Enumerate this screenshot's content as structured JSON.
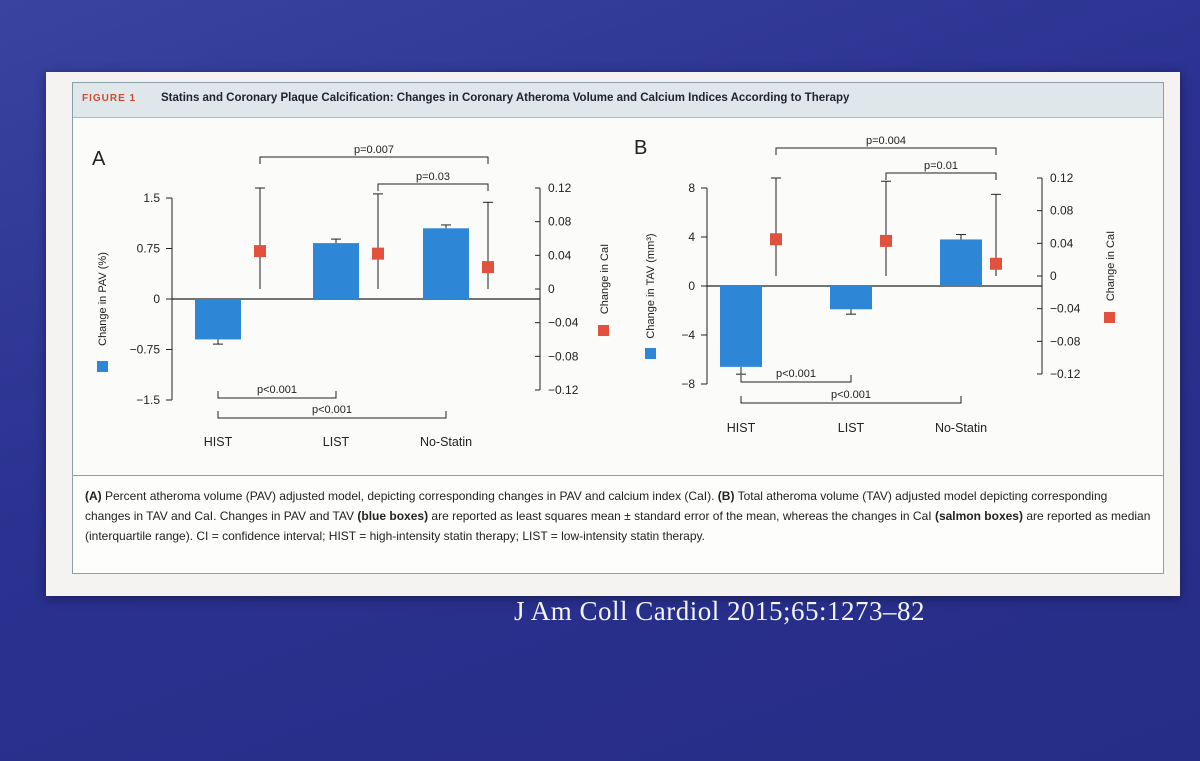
{
  "figure": {
    "label": "FIGURE 1",
    "title": "Statins and Coronary Plaque Calcification: Changes in Coronary Atheroma Volume and Calcium Indices According to Therapy",
    "caption": {
      "part1_label": "(A)",
      "part1": " Percent atheroma volume (PAV) adjusted model, depicting corresponding changes in PAV and calcium index (CaI). ",
      "part2_label": "(B)",
      "part2": " Total atheroma volume (TAV) adjusted model depicting corresponding changes in TAV and CaI. Changes in PAV and TAV ",
      "blue_label": "(blue boxes)",
      "part3": " are reported as least squares mean ± standard error of the mean, whereas the changes in CaI ",
      "salmon_label": "(salmon boxes)",
      "part4": " are reported as median (interquartile range). CI = confidence interval; HIST = high-intensity statin therapy; LIST = low-intensity statin therapy."
    }
  },
  "citation": "J Am Coll Cardiol 2015;65:1273–82",
  "colors": {
    "blue": "#2e86d6",
    "salmon": "#e2513e",
    "axis": "#222222"
  },
  "chart_data": [
    {
      "type": "bar",
      "panel_label": "A",
      "categories": [
        "HIST",
        "LIST",
        "No-Statin"
      ],
      "ylabel": "Change in PAV (%)",
      "y2label": "Change in CaI",
      "ylim": [
        -1.5,
        1.5
      ],
      "yticks": [
        "1.5",
        "0.75",
        "0",
        "−0.75",
        "−1.5"
      ],
      "ytick_values": [
        1.5,
        0.75,
        0,
        -0.75,
        -1.5
      ],
      "y2lim": [
        -0.12,
        0.12
      ],
      "y2ticks": [
        "0.12",
        "0.08",
        "0.04",
        "0",
        "−0.04",
        "−0.08",
        "−0.12"
      ],
      "y2tick_values": [
        0.12,
        0.08,
        0.04,
        0,
        -0.04,
        -0.08,
        -0.12
      ],
      "series": [
        {
          "name": "Change in PAV (%)",
          "values": [
            -0.6,
            0.83,
            1.05
          ],
          "error": [
            0.07,
            0.06,
            0.05
          ]
        },
        {
          "name": "Change in CaI",
          "axis": "right",
          "values": [
            0.045,
            0.042,
            0.026
          ],
          "low": [
            0.0,
            0.0,
            0.0
          ],
          "high": [
            0.12,
            0.113,
            0.103
          ]
        }
      ],
      "comparisons_top": [
        {
          "text": "p=0.007",
          "from": 0,
          "to": 2
        },
        {
          "text": "p=0.03",
          "from": 1,
          "to": 2
        }
      ],
      "comparisons_bottom": [
        {
          "text": "p<0.001",
          "from": 0,
          "to": 1
        },
        {
          "text": "p<0.001",
          "from": 0,
          "to": 2
        }
      ]
    },
    {
      "type": "bar",
      "panel_label": "B",
      "categories": [
        "HIST",
        "LIST",
        "No-Statin"
      ],
      "ylabel": "Change in TAV (mm³)",
      "y2label": "Change in CaI",
      "ylim": [
        -8,
        8
      ],
      "yticks": [
        "8",
        "4",
        "0",
        "−4",
        "−8"
      ],
      "ytick_values": [
        8,
        4,
        0,
        -4,
        -8
      ],
      "y2lim": [
        -0.12,
        0.12
      ],
      "y2ticks": [
        "0.12",
        "0.08",
        "0.04",
        "0",
        "−0.04",
        "−0.08",
        "−0.12"
      ],
      "y2tick_values": [
        0.12,
        0.08,
        0.04,
        0,
        -0.04,
        -0.08,
        -0.12
      ],
      "series": [
        {
          "name": "Change in TAV (mm³)",
          "values": [
            -6.6,
            -1.9,
            3.8
          ],
          "error": [
            0.6,
            0.4,
            0.4
          ]
        },
        {
          "name": "Change in CaI",
          "axis": "right",
          "values": [
            0.045,
            0.043,
            0.015
          ],
          "low": [
            0.0,
            0.0,
            0.0
          ],
          "high": [
            0.12,
            0.116,
            0.1
          ]
        }
      ],
      "comparisons_top": [
        {
          "text": "p=0.004",
          "from": 0,
          "to": 2
        },
        {
          "text": "p=0.01",
          "from": 1,
          "to": 2
        }
      ],
      "comparisons_bottom": [
        {
          "text": "p<0.001",
          "from": 0,
          "to": 1
        },
        {
          "text": "p<0.001",
          "from": 0,
          "to": 2
        }
      ]
    }
  ]
}
